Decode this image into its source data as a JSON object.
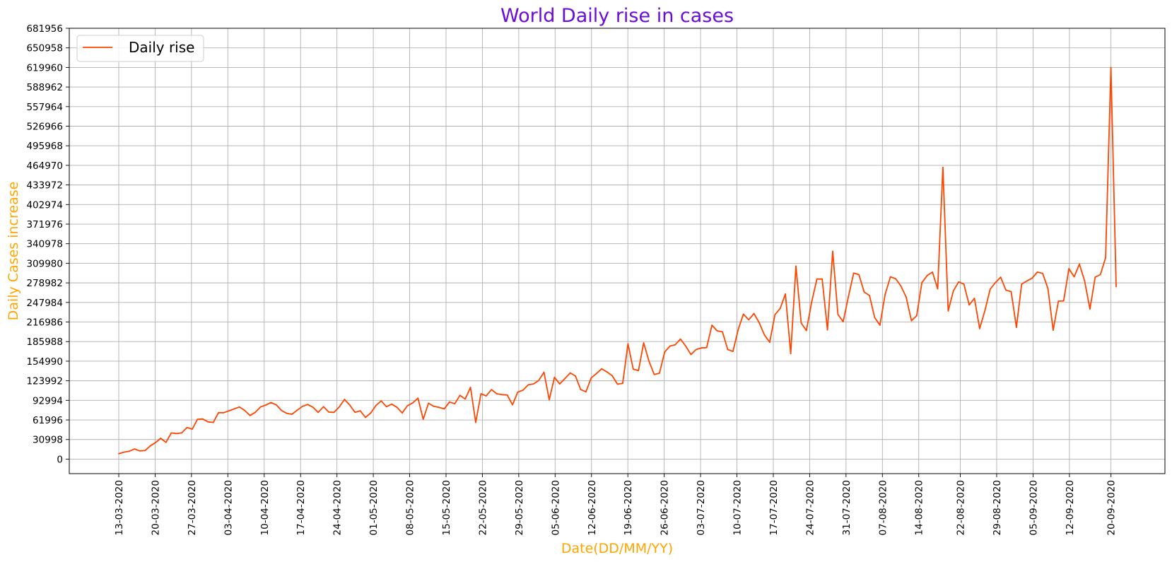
{
  "chart_data": {
    "type": "line",
    "title": "World Daily rise in cases",
    "xlabel": "Date(DD/MM/YY)",
    "ylabel": "Daily Cases increase",
    "x_start": "13-03-2020",
    "x_end": "21-09-2020",
    "x_tick_labels": [
      "13-03-2020",
      "20-03-2020",
      "27-03-2020",
      "03-04-2020",
      "10-04-2020",
      "17-04-2020",
      "24-04-2020",
      "01-05-2020",
      "08-05-2020",
      "15-05-2020",
      "22-05-2020",
      "29-05-2020",
      "05-06-2020",
      "12-06-2020",
      "19-06-2020",
      "26-06-2020",
      "03-07-2020",
      "10-07-2020",
      "17-07-2020",
      "24-07-2020",
      "31-07-2020",
      "07-08-2020",
      "14-08-2020",
      "22-08-2020",
      "29-08-2020",
      "05-09-2020",
      "12-09-2020",
      "20-09-2020"
    ],
    "y_ticks": [
      0,
      30998,
      61996,
      92994,
      123992,
      154990,
      185988,
      216986,
      247984,
      278982,
      309980,
      340978,
      371976,
      402974,
      433972,
      464970,
      495968,
      526966,
      557964,
      588962,
      619960,
      650958,
      681956
    ],
    "ylim": [
      -23000,
      681956
    ],
    "grid": true,
    "legend_position": "top-left",
    "series": [
      {
        "name": "Daily rise",
        "color": "#ff4500",
        "values": [
          8500,
          11000,
          12500,
          16000,
          13000,
          13500,
          21000,
          26000,
          33000,
          26500,
          41500,
          40500,
          41500,
          50000,
          47500,
          63000,
          63500,
          59000,
          58000,
          73500,
          73500,
          76500,
          79500,
          82500,
          77000,
          69000,
          74000,
          82500,
          85500,
          89500,
          86000,
          77000,
          72500,
          71000,
          77500,
          83500,
          86500,
          82000,
          74000,
          83000,
          74500,
          74000,
          82500,
          94500,
          85500,
          74000,
          76500,
          66000,
          73000,
          85000,
          92000,
          83000,
          87000,
          82000,
          73000,
          84500,
          89000,
          96500,
          63000,
          88500,
          83500,
          82000,
          79500,
          90500,
          87500,
          101000,
          95000,
          113500,
          58000,
          103500,
          100000,
          110000,
          103500,
          102000,
          101500,
          86000,
          106000,
          109000,
          117500,
          119000,
          124500,
          137500,
          94000,
          129500,
          119000,
          127500,
          136500,
          131500,
          110000,
          106500,
          128500,
          135500,
          143000,
          138000,
          132000,
          118500,
          120000,
          182500,
          142500,
          140000,
          184000,
          155000,
          134000,
          136000,
          169500,
          179000,
          181000,
          190000,
          179000,
          165500,
          173500,
          176000,
          176500,
          212000,
          203000,
          201500,
          173500,
          170500,
          205000,
          229500,
          220500,
          230500,
          216000,
          196500,
          185000,
          228500,
          238500,
          261500,
          167000,
          305500,
          215500,
          203500,
          249000,
          285000,
          285000,
          204500,
          329000,
          229000,
          217500,
          257500,
          294500,
          292000,
          264500,
          259000,
          224000,
          212000,
          261000,
          288500,
          285500,
          274000,
          256500,
          219000,
          227000,
          279500,
          290500,
          296000,
          269500,
          462000,
          234500,
          266500,
          280500,
          277000,
          244000,
          254500,
          206500,
          235000,
          269000,
          279500,
          288000,
          267500,
          265000,
          208500,
          277000,
          282000,
          286500,
          296000,
          294000,
          270000,
          204000,
          250000,
          250500,
          301500,
          288500,
          308500,
          282000,
          237500,
          288000,
          292000,
          319000,
          619960,
          273000
        ]
      }
    ]
  }
}
